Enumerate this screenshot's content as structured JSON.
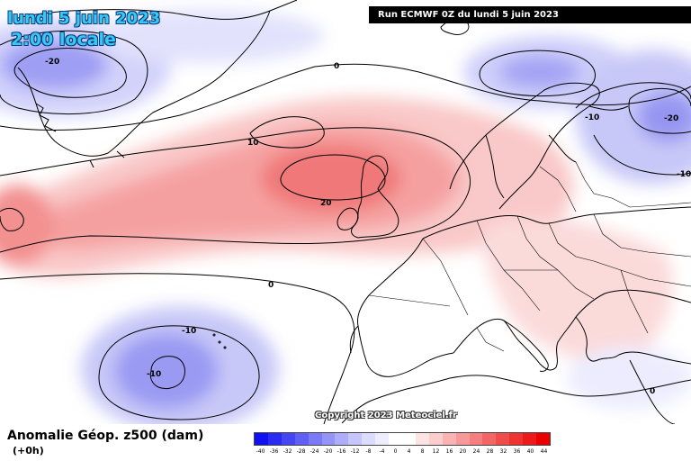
{
  "header": {
    "date": "lundi 5 juin 2023",
    "time": "2:00 locale",
    "run": "Run ECMWF 0Z du lundi 5 juin 2023"
  },
  "footer": {
    "field_title": "Anomalie Géop. z500 (dam)",
    "step": "(+0h)",
    "copyright": "Copyright 2023 Meteociel.fr"
  },
  "legend": {
    "labels": [
      "-40",
      "-36",
      "-32",
      "-28",
      "-24",
      "-20",
      "-16",
      "-12",
      "-8",
      "-4",
      "0",
      "4",
      "8",
      "12",
      "16",
      "20",
      "24",
      "28",
      "32",
      "36",
      "40",
      "44"
    ],
    "colors": [
      "#1010f0",
      "#2a2af0",
      "#4545f2",
      "#5f5ff4",
      "#7a7af6",
      "#9494f8",
      "#adadfa",
      "#c6c6fc",
      "#dcdcfe",
      "#ededff",
      "#ffffff",
      "#ffffff",
      "#fde4e4",
      "#fbcdcd",
      "#f9b3b3",
      "#f79999",
      "#f57f7f",
      "#f36666",
      "#f14c4c",
      "#ef3333",
      "#ed1a1a",
      "#ea0000"
    ]
  },
  "map": {
    "contour_labels": [
      "0",
      "-20",
      "10",
      "20",
      "-10",
      "-20",
      "-10",
      "-10",
      "0",
      "-10",
      "-20",
      "0"
    ],
    "colors": {
      "low": "#8f8ff2",
      "low_light": "#d6d6fb",
      "high": "#f57f7f",
      "high_light": "#f9c2c2",
      "land_line": "#000000"
    }
  }
}
